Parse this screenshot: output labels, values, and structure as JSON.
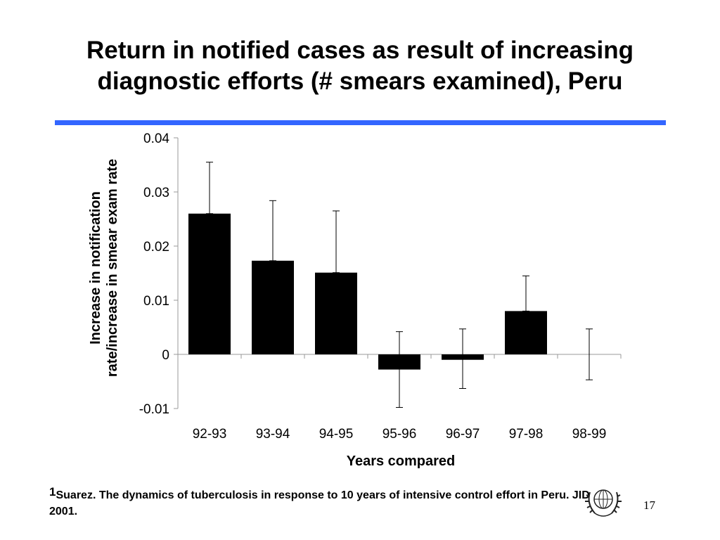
{
  "slide": {
    "title_line1": "Return in notified cases as result of increasing",
    "title_line2": "diagnostic efforts (# smears examined), Peru",
    "rule_color": "#3366ff",
    "footnote_marker": "1",
    "footnote_text": "Suarez. The dynamics of tuberculosis in response to 10 years of intensive control effort in Peru. JID 2001.",
    "page_number": "17",
    "logo_icon": "un-wreath-emblem-icon"
  },
  "chart_data": {
    "type": "bar",
    "xlabel": "Years compared",
    "ylabel_line1": "Increase in notification",
    "ylabel_line2": "rate/increase in smear exam rate",
    "categories": [
      "92-93",
      "93-94",
      "94-95",
      "95-96",
      "96-97",
      "97-98",
      "98-99"
    ],
    "values": [
      0.026,
      0.0173,
      0.0151,
      -0.0028,
      -0.001,
      0.008,
      0
    ],
    "error_upper": [
      0.0355,
      0.0284,
      0.0265,
      0.0042,
      0.0047,
      0.0145,
      0.0047
    ],
    "error_lower": [
      0.026,
      0.0173,
      0.0151,
      -0.0098,
      -0.0063,
      0.008,
      -0.0047
    ],
    "ylim": [
      -0.01,
      0.04
    ],
    "yticks": [
      "-0.01",
      "0",
      "0.01",
      "0.02",
      "0.03",
      "0.04"
    ],
    "ytick_values": [
      -0.01,
      0,
      0.01,
      0.02,
      0.03,
      0.04
    ],
    "bar_color": "#000000",
    "grid": false,
    "legend": "none"
  }
}
